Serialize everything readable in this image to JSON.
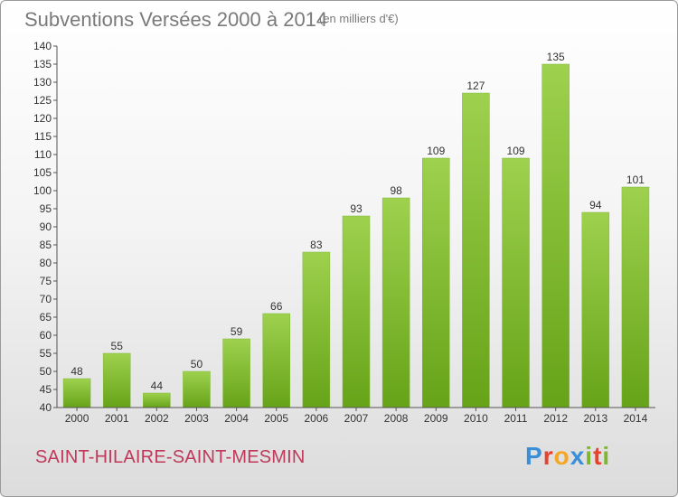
{
  "title": "Subventions Versées 2000 à 2014",
  "subtitle": "(en milliers d'€)",
  "commune": "SAINT-HILAIRE-SAINT-MESMIN",
  "logo": {
    "text": "Proxiti",
    "letters": [
      {
        "ch": "P",
        "color": "#3a8fd9"
      },
      {
        "ch": "r",
        "color": "#e8412c"
      },
      {
        "ch": "o",
        "color": "#f5a623"
      },
      {
        "ch": "x",
        "color": "#3a8fd9"
      },
      {
        "ch": "i",
        "color": "#7cb82f"
      },
      {
        "ch": "t",
        "color": "#e8412c"
      },
      {
        "ch": "i",
        "color": "#7cb82f"
      }
    ]
  },
  "colors": {
    "bar_light": "#9ed14e",
    "bar_dark": "#66a319",
    "axis": "#555555",
    "grid": "#d0d0d0",
    "title": "#7a7a7a",
    "commune": "#c0395a"
  },
  "chart_data": {
    "type": "bar",
    "categories": [
      "2000",
      "2001",
      "2002",
      "2003",
      "2004",
      "2005",
      "2006",
      "2007",
      "2008",
      "2009",
      "2010",
      "2011",
      "2012",
      "2013",
      "2014"
    ],
    "values": [
      48,
      55,
      44,
      50,
      59,
      66,
      83,
      93,
      98,
      109,
      127,
      109,
      135,
      94,
      101
    ],
    "data_labels": [
      "48",
      "55",
      "44",
      "50",
      "59",
      "66",
      "83",
      "93",
      "98",
      "109",
      "127",
      "109",
      "135",
      "94",
      "101"
    ],
    "ylim": [
      40,
      140
    ],
    "yticks": [
      40,
      45,
      50,
      55,
      60,
      65,
      70,
      75,
      80,
      85,
      90,
      95,
      100,
      105,
      110,
      115,
      120,
      125,
      130,
      135,
      140
    ],
    "grid": false
  }
}
